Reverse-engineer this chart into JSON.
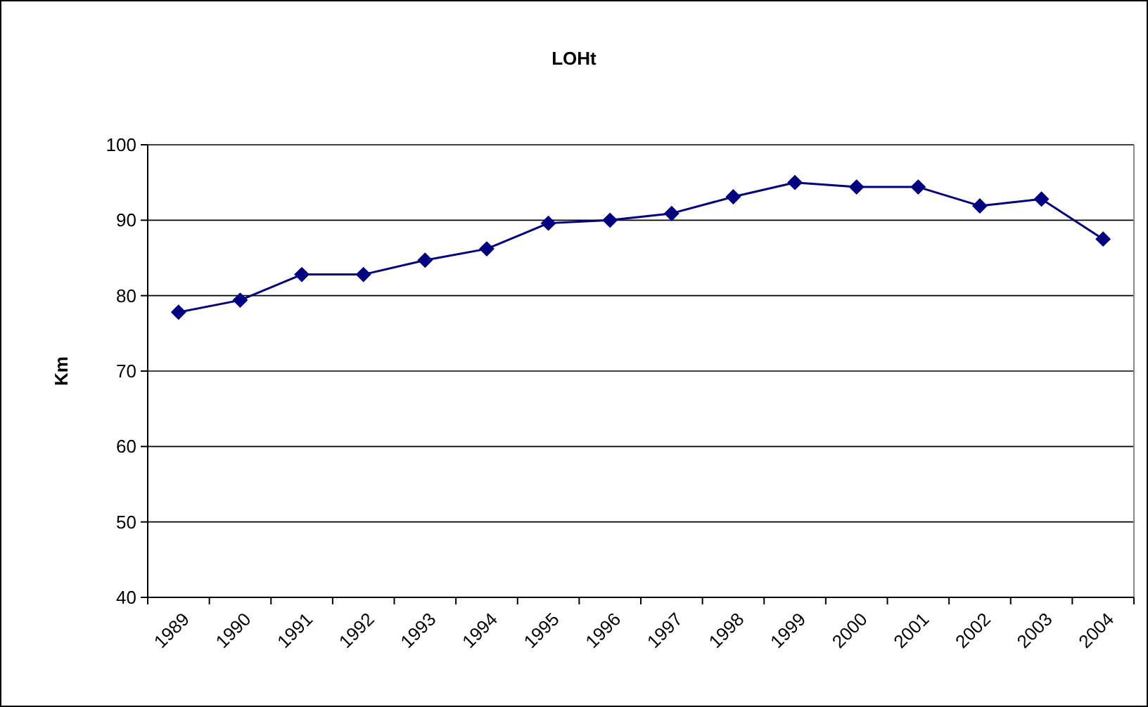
{
  "chart_data": {
    "type": "line",
    "title": "LOHt",
    "ylabel": "Km",
    "categories": [
      "1989",
      "1990",
      "1991",
      "1992",
      "1993",
      "1994",
      "1995",
      "1996",
      "1997",
      "1998",
      "1999",
      "2000",
      "2001",
      "2002",
      "2003",
      "2004"
    ],
    "series": [
      {
        "color": "#000080",
        "values": [
          77.8,
          79.4,
          82.8,
          82.8,
          84.7,
          86.2,
          89.6,
          90.0,
          90.9,
          93.1,
          95.0,
          94.4,
          94.4,
          91.9,
          92.8,
          87.5
        ]
      }
    ],
    "ylim": [
      40,
      100
    ],
    "yticks": [
      40,
      50,
      60,
      70,
      80,
      90,
      100
    ],
    "grid": "y",
    "marker": "diamond"
  }
}
